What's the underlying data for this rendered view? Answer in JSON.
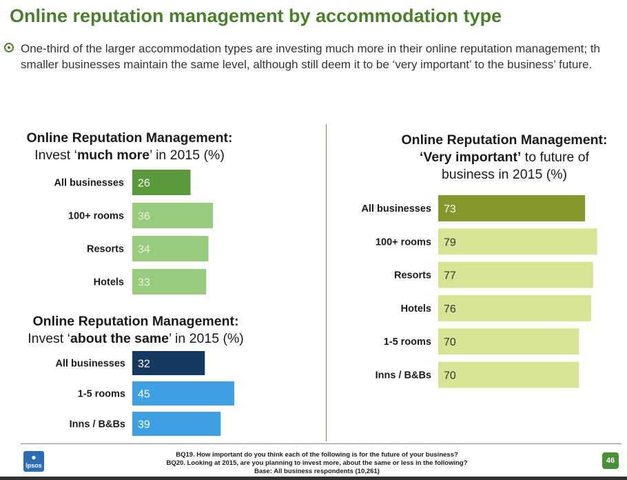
{
  "slide": {
    "title": "Online reputation management by accommodation type",
    "bullet_line1": "One-third of the larger accommodation types are investing much more in their online reputation management; th",
    "bullet_line2": "smaller businesses maintain the same level, although still deem it to be ‘very important’ to the business’ future."
  },
  "titles": {
    "c1_line1": "Online Reputation Management:",
    "c1_pre": "Invest ‘",
    "c1_bold": "much more",
    "c1_post": "’ in 2015 (%)",
    "c2_line1": "Online Reputation Management:",
    "c2_pre": "Invest ‘",
    "c2_bold": "about the same",
    "c2_post": "’ in 2015 (%)",
    "c3_line1": "Online Reputation Management:",
    "c3_bold": "‘Very important’",
    "c3_post": " to future of",
    "c3_line3": "business in 2015 (%)"
  },
  "chart_data": [
    {
      "type": "bar",
      "orientation": "horizontal",
      "title": "Online Reputation Management: Invest ‘much more’ in 2015 (%)",
      "categories": [
        "All businesses",
        "100+ rooms",
        "Resorts",
        "Hotels"
      ],
      "values": [
        26,
        36,
        34,
        33
      ],
      "colors": [
        "#5a9a3c",
        "#97cb7d",
        "#97cb7d",
        "#97cb7d"
      ],
      "value_label_colors": [
        "#ffffff",
        "#e8f5df",
        "#e8f5df",
        "#e8f5df"
      ]
    },
    {
      "type": "bar",
      "orientation": "horizontal",
      "title": "Online Reputation Management: Invest ‘about the same’ in 2015 (%)",
      "categories": [
        "All businesses",
        "1-5 rooms",
        "Inns / B&Bs"
      ],
      "values": [
        32,
        45,
        39
      ],
      "colors": [
        "#14385e",
        "#3e9fe3",
        "#3e9fe3"
      ],
      "value_label_colors": [
        "#ffffff",
        "#ffffff",
        "#ffffff"
      ]
    },
    {
      "type": "bar",
      "orientation": "horizontal",
      "title": "Online Reputation Management: ‘Very important’ to future of business in 2015 (%)",
      "categories": [
        "All businesses",
        "100+ rooms",
        "Resorts",
        "Hotels",
        "1-5 rooms",
        "Inns / B&Bs"
      ],
      "values": [
        73,
        79,
        77,
        76,
        70,
        70
      ],
      "colors": [
        "#86962a",
        "#d6e593",
        "#d6e593",
        "#d6e593",
        "#d6e593",
        "#d6e593"
      ],
      "value_label_colors": [
        "#ffffff",
        "#333333",
        "#333333",
        "#333333",
        "#333333",
        "#333333"
      ]
    }
  ],
  "footer": {
    "logo_text": "Ipsos",
    "note1": "BQ19.  How important do you think each of the following is for the future of your business?",
    "note2": "BQ20. Looking at 2015, are you planning to invest more, about the same or less in the following?",
    "note3": "Base: All business respondents (10,261)",
    "page_number": "46"
  }
}
